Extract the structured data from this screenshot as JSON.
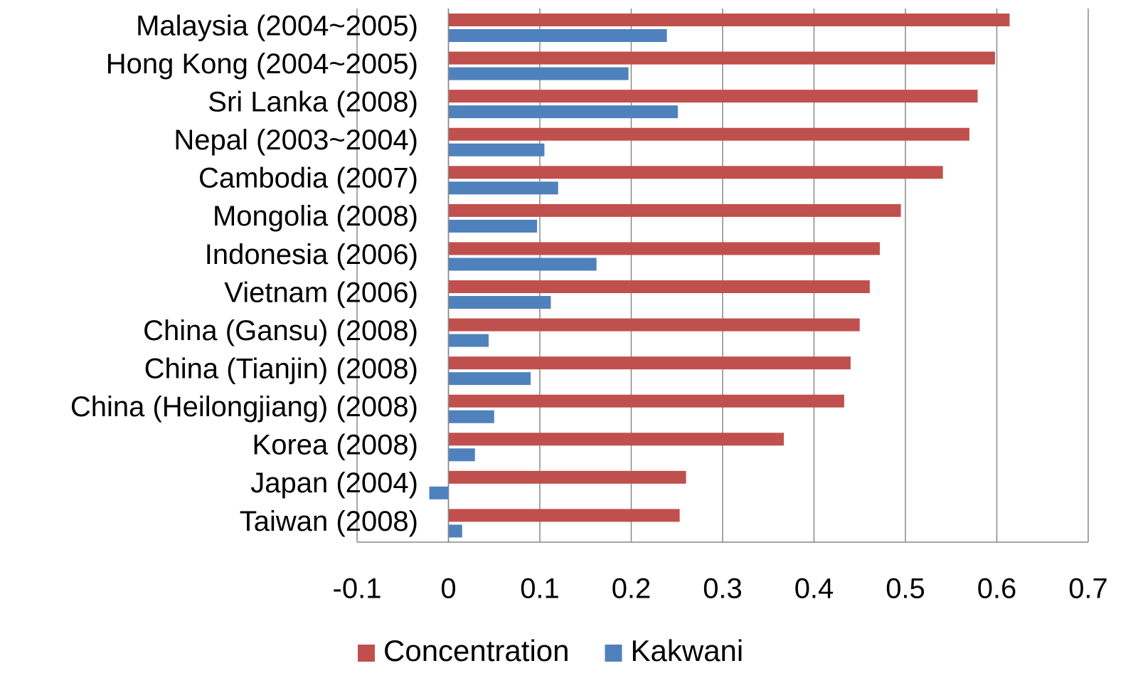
{
  "chart_data": {
    "type": "bar",
    "orientation": "horizontal",
    "categories": [
      "Malaysia (2004~2005)",
      "Hong Kong (2004~2005)",
      "Sri Lanka (2008)",
      "Nepal (2003~2004)",
      "Cambodia (2007)",
      "Mongolia (2008)",
      "Indonesia (2006)",
      "Vietnam (2006)",
      "China (Gansu) (2008)",
      "China (Tianjin) (2008)",
      "China (Heilongjiang) (2008)",
      "Korea (2008)",
      "Japan (2004)",
      "Taiwan (2008)"
    ],
    "series": [
      {
        "name": "Concentration",
        "color": "#c0504d",
        "values": [
          0.614,
          0.598,
          0.579,
          0.57,
          0.541,
          0.495,
          0.472,
          0.461,
          0.45,
          0.44,
          0.433,
          0.367,
          0.26,
          0.253
        ]
      },
      {
        "name": "Kakwani",
        "color": "#4f81bd",
        "values": [
          0.239,
          0.197,
          0.251,
          0.105,
          0.12,
          0.097,
          0.162,
          0.112,
          0.044,
          0.09,
          0.05,
          0.029,
          -0.021,
          0.015
        ]
      }
    ],
    "xlim": [
      -0.1,
      0.7
    ],
    "xticks": [
      -0.1,
      0,
      0.1,
      0.2,
      0.3,
      0.4,
      0.5,
      0.6,
      0.7
    ],
    "grid": true,
    "legend": "bottom"
  }
}
